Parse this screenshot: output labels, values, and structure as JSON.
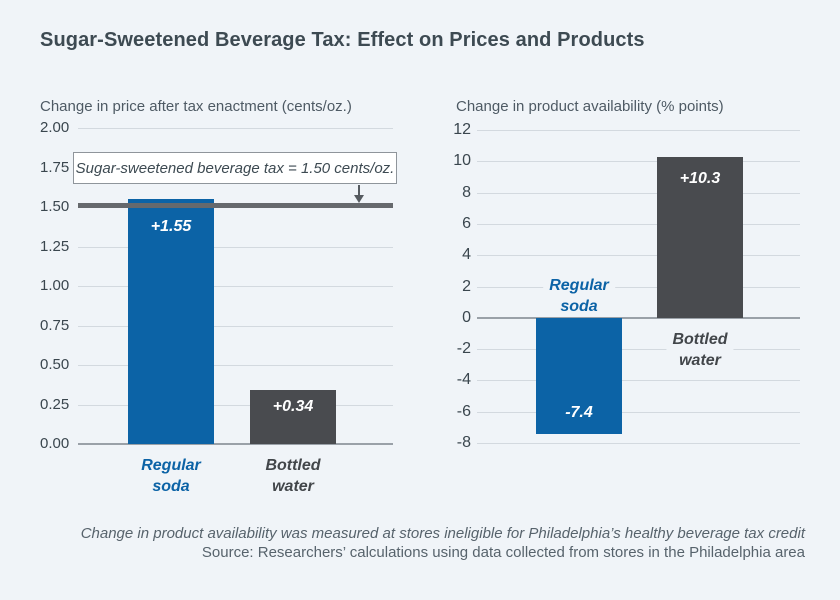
{
  "page": {
    "title": "Sugar-Sweetened Beverage Tax: Effect on Prices and Products",
    "background_color": "#f0f4f8",
    "accent_blue": "#0c63a6",
    "accent_dark": "#494b4f"
  },
  "footer": {
    "note": "Change in product availability was measured at stores ineligible for Philadelphia’s healthy beverage tax credit",
    "source": "Source: Researchers’ calculations using data collected from stores in the Philadelphia area"
  },
  "chart_data": [
    {
      "type": "bar",
      "title": "Change in price after tax enactment (cents/oz.)",
      "ylim": [
        0,
        2
      ],
      "grid": true,
      "legend": "none",
      "yticks": [
        {
          "value": 2.0,
          "label": "2.00"
        },
        {
          "value": 1.75,
          "label": "1.75"
        },
        {
          "value": 1.5,
          "label": "1.50"
        },
        {
          "value": 1.25,
          "label": "1.25"
        },
        {
          "value": 1.0,
          "label": "1.00"
        },
        {
          "value": 0.75,
          "label": "0.75"
        },
        {
          "value": 0.5,
          "label": "0.50"
        },
        {
          "value": 0.25,
          "label": "0.25"
        },
        {
          "value": 0.0,
          "label": "0.00"
        }
      ],
      "categories": [
        "Regular soda",
        "Bottled water"
      ],
      "values": [
        1.55,
        0.34
      ],
      "bars": [
        {
          "category": "Regular soda",
          "category_lines": [
            "Regular",
            "soda"
          ],
          "value": 1.55,
          "value_label": "+1.55",
          "color": "#0c63a6",
          "category_color": "#0c63a6"
        },
        {
          "category": "Bottled water",
          "category_lines": [
            "Bottled",
            "water"
          ],
          "value": 0.34,
          "value_label": "+0.34",
          "color": "#494b4f",
          "category_color": "#42464a"
        }
      ],
      "reference_line": {
        "value": 1.5,
        "label": "Sugar-sweetened beverage tax = 1.50 cents/oz.",
        "color": "#66696d"
      }
    },
    {
      "type": "bar",
      "title": "Change in product availability (% points)",
      "ylim": [
        -8,
        12
      ],
      "grid": true,
      "legend": "none",
      "yticks": [
        {
          "value": 12,
          "label": "12"
        },
        {
          "value": 10,
          "label": "10"
        },
        {
          "value": 8,
          "label": "8"
        },
        {
          "value": 6,
          "label": "6"
        },
        {
          "value": 4,
          "label": "4"
        },
        {
          "value": 2,
          "label": "2"
        },
        {
          "value": 0,
          "label": "0"
        },
        {
          "value": -2,
          "label": "-2"
        },
        {
          "value": -4,
          "label": "-4"
        },
        {
          "value": -6,
          "label": "-6"
        },
        {
          "value": -8,
          "label": "-8"
        }
      ],
      "categories": [
        "Regular soda",
        "Bottled water"
      ],
      "values": [
        -7.4,
        10.3
      ],
      "bars": [
        {
          "category": "Regular soda",
          "category_lines": [
            "Regular",
            "soda"
          ],
          "value": -7.4,
          "value_label": "-7.4",
          "color": "#0c63a6",
          "category_color": "#0c63a6"
        },
        {
          "category": "Bottled water",
          "category_lines": [
            "Bottled",
            "water"
          ],
          "value": 10.3,
          "value_label": "+10.3",
          "color": "#494b4f",
          "category_color": "#42464a"
        }
      ]
    }
  ]
}
